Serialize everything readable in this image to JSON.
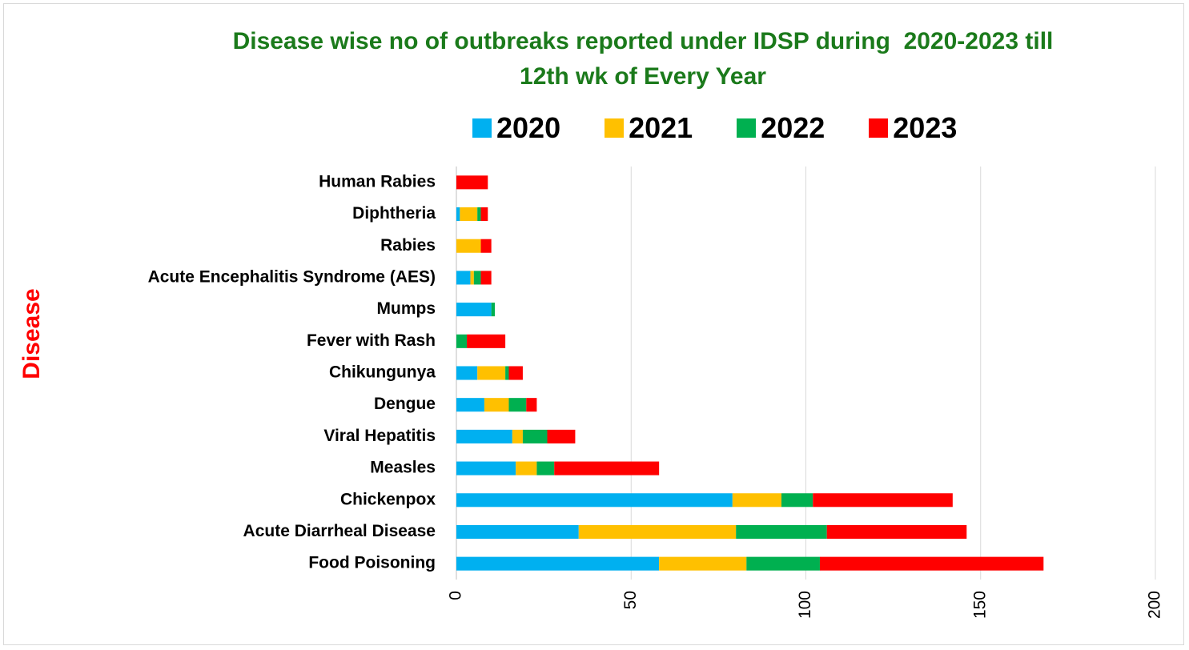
{
  "chart_data": {
    "type": "bar",
    "orientation": "horizontal",
    "stacked": true,
    "title": "Disease wise no of outbreaks reported under IDSP during  2020-2023 till\n12th wk of Every Year",
    "xlabel": "",
    "ylabel": "Disease",
    "xlim": [
      0,
      200
    ],
    "xticks": [
      0,
      50,
      100,
      150,
      200
    ],
    "grid": true,
    "legend_position": "top",
    "categories": [
      "Human Rabies",
      "Diphtheria",
      "Rabies",
      "Acute Encephalitis Syndrome (AES)",
      "Mumps",
      "Fever with Rash",
      "Chikungunya",
      "Dengue",
      "Viral Hepatitis",
      "Measles",
      "Chickenpox",
      "Acute Diarrheal Disease",
      "Food Poisoning"
    ],
    "series": [
      {
        "name": "2020",
        "color": "#00b0f0",
        "values": [
          0,
          1,
          0,
          4,
          10,
          0,
          6,
          8,
          16,
          17,
          79,
          35,
          58
        ]
      },
      {
        "name": "2021",
        "color": "#ffc000",
        "values": [
          0,
          5,
          7,
          1,
          0,
          0,
          8,
          7,
          3,
          6,
          14,
          45,
          25
        ]
      },
      {
        "name": "2022",
        "color": "#00b050",
        "values": [
          0,
          1,
          0,
          2,
          1,
          3,
          1,
          5,
          7,
          5,
          9,
          26,
          21
        ]
      },
      {
        "name": "2023",
        "color": "#ff0000",
        "values": [
          9,
          2,
          3,
          3,
          0,
          11,
          4,
          3,
          8,
          30,
          40,
          40,
          64
        ]
      }
    ]
  }
}
